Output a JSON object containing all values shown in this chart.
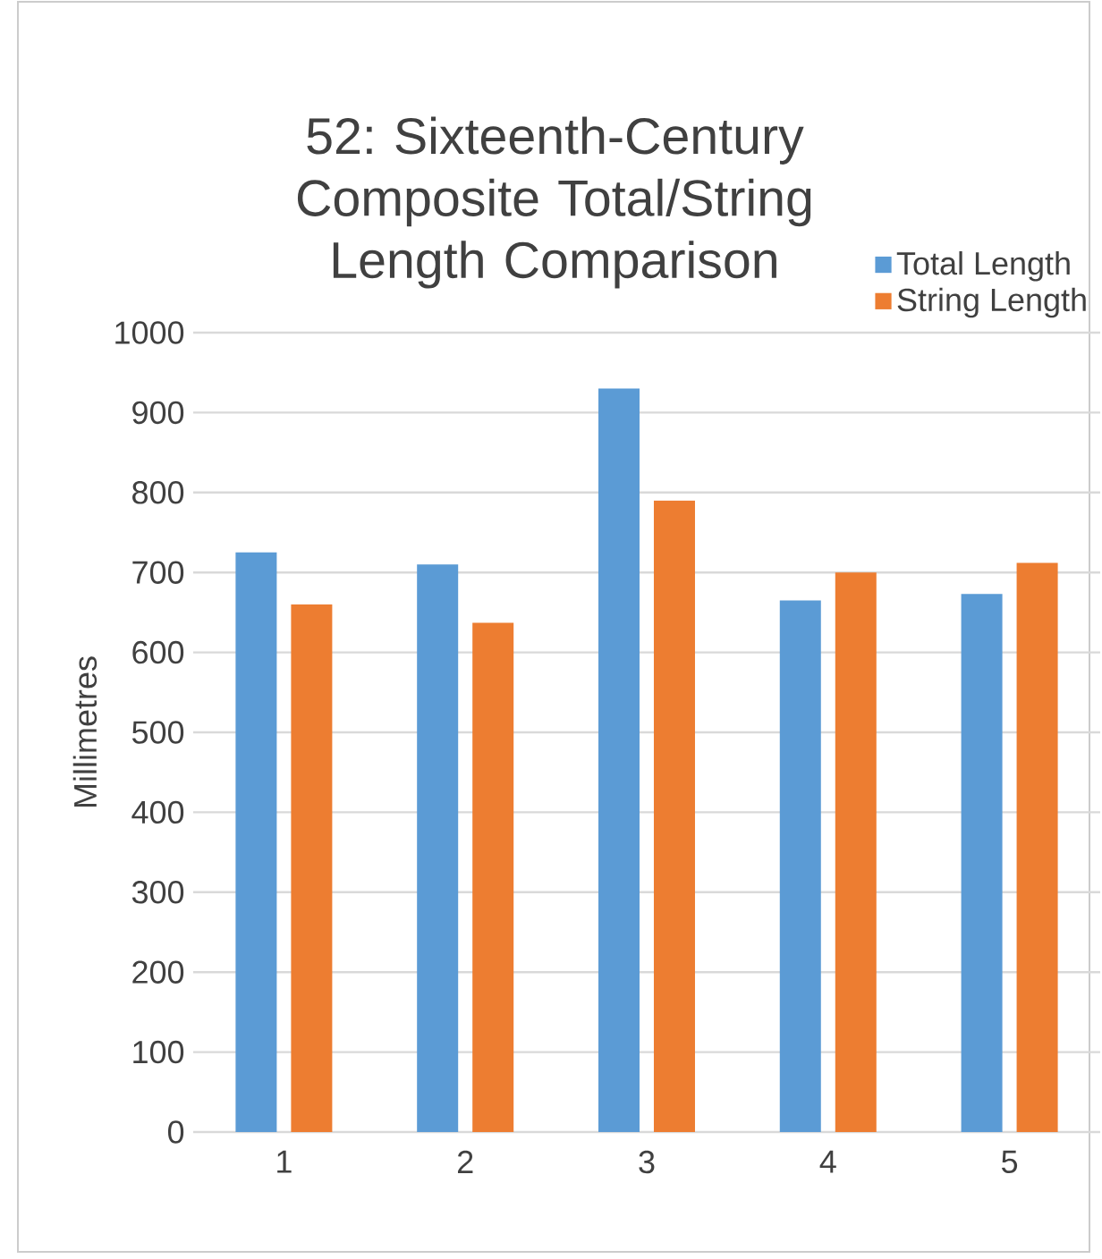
{
  "chart_data": {
    "type": "bar",
    "title": "52: Sixteenth-Century Composite Total/String Length Comparison",
    "ylabel": "Millimetres",
    "categories": [
      "1",
      "2",
      "3",
      "4",
      "5"
    ],
    "series": [
      {
        "name": "Total Length",
        "color": "#5b9bd5",
        "values": [
          725,
          710,
          930,
          665,
          673
        ]
      },
      {
        "name": "String Length",
        "color": "#ed7d31",
        "values": [
          660,
          637,
          790,
          700,
          712
        ]
      }
    ],
    "ylim": [
      0,
      1000
    ],
    "yticks": [
      0,
      100,
      200,
      300,
      400,
      500,
      600,
      700,
      800,
      900,
      1000
    ],
    "grid": "y",
    "legend": "top right"
  }
}
